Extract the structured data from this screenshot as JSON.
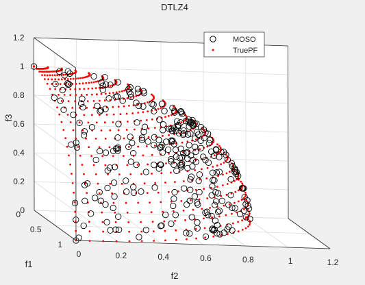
{
  "chart_data": {
    "type": "scatter",
    "title": "DTLZ4",
    "xlabel": "f1",
    "ylabel": "f2",
    "zlabel": "f3",
    "xlim": [
      0,
      1
    ],
    "ylim": [
      0,
      1.2
    ],
    "zlim": [
      0,
      1.2
    ],
    "x_ticks": [
      "0",
      "0.5",
      "1"
    ],
    "y_ticks": [
      "0",
      "0.2",
      "0.4",
      "0.6",
      "0.8",
      "1",
      "1.2"
    ],
    "z_ticks": [
      "0",
      "0.2",
      "0.4",
      "0.6",
      "0.8",
      "1",
      "1.2"
    ],
    "grid": true,
    "legend": {
      "placement": "top-right",
      "entries": [
        {
          "label": "MOSO",
          "marker": "open-circle",
          "color": "#000000"
        },
        {
          "label": "TruePF",
          "marker": "dot",
          "color": "#ff0000"
        }
      ]
    },
    "series": [
      {
        "name": "MOSO",
        "marker": "open-circle",
        "color": "#000000",
        "surface": "unit-sphere-octant",
        "approx_point_count": 300,
        "points": [
          [
            0.0,
            0.0,
            1.0
          ],
          [
            0.0,
            1.0,
            0.0
          ],
          [
            1.0,
            0.0,
            0.0
          ],
          [
            0.1,
            0.1,
            0.99
          ],
          [
            0.3,
            0.1,
            0.95
          ],
          [
            0.2,
            0.3,
            0.93
          ],
          [
            0.5,
            0.2,
            0.84
          ],
          [
            0.3,
            0.4,
            0.87
          ],
          [
            0.1,
            0.5,
            0.86
          ],
          [
            0.6,
            0.4,
            0.69
          ],
          [
            0.4,
            0.6,
            0.69
          ],
          [
            0.2,
            0.7,
            0.68
          ],
          [
            0.7,
            0.1,
            0.7
          ],
          [
            0.8,
            0.3,
            0.52
          ],
          [
            0.5,
            0.7,
            0.51
          ],
          [
            0.3,
            0.8,
            0.52
          ],
          [
            0.9,
            0.2,
            0.39
          ],
          [
            0.7,
            0.6,
            0.39
          ],
          [
            0.4,
            0.85,
            0.34
          ],
          [
            0.95,
            0.1,
            0.29
          ],
          [
            0.6,
            0.75,
            0.28
          ],
          [
            0.2,
            0.95,
            0.24
          ],
          [
            0.85,
            0.5,
            0.17
          ],
          [
            0.5,
            0.85,
            0.16
          ],
          [
            0.98,
            0.15,
            0.13
          ],
          [
            0.3,
            0.94,
            0.15
          ],
          [
            0.7,
            0.7,
            0.14
          ],
          [
            0.1,
            0.99,
            0.1
          ],
          [
            0.9,
            0.42,
            0.1
          ],
          [
            0.6,
            0.8,
            0.05
          ]
        ]
      },
      {
        "name": "TruePF",
        "marker": "dot",
        "color": "#ff0000",
        "surface": "unit-sphere-octant",
        "grid_divisions": 24,
        "approx_point_count": 325
      }
    ]
  }
}
